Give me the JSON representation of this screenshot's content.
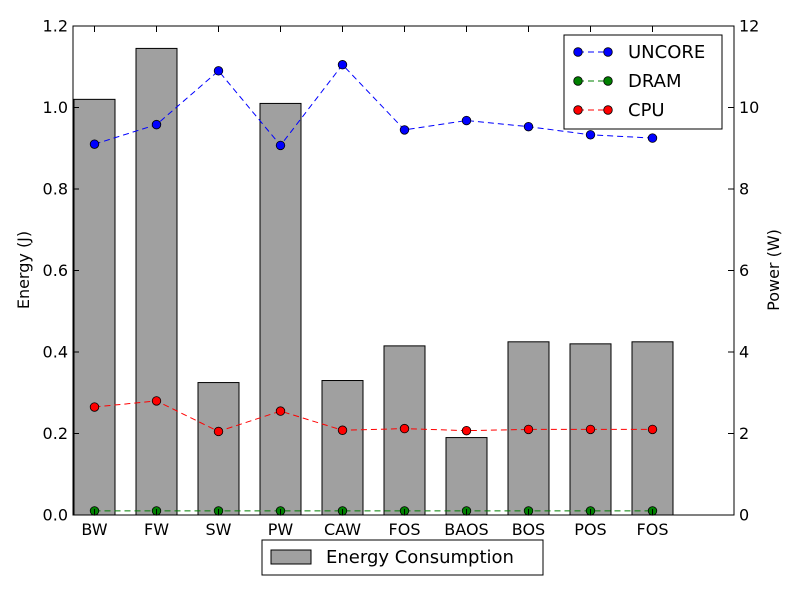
{
  "chart_data": {
    "type": "bar",
    "categories": [
      "BW",
      "FW",
      "SW",
      "PW",
      "CAW",
      "FOS",
      "BAOS",
      "BOS",
      "POS",
      "FOS"
    ],
    "bar_series": {
      "name": "Energy Consumption",
      "values": [
        1.02,
        1.145,
        0.325,
        1.01,
        0.33,
        0.415,
        0.19,
        0.425,
        0.42,
        0.425
      ],
      "color": "#a0a0a0"
    },
    "line_series": [
      {
        "name": "UNCORE",
        "axis": "right",
        "color": "#0000ff",
        "values": [
          9.1,
          9.58,
          10.9,
          9.07,
          11.05,
          9.45,
          9.68,
          9.53,
          9.33,
          9.25
        ]
      },
      {
        "name": "DRAM",
        "axis": "right",
        "color": "#008000",
        "values": [
          0.1,
          0.1,
          0.1,
          0.1,
          0.1,
          0.1,
          0.1,
          0.1,
          0.1,
          0.1
        ]
      },
      {
        "name": "CPU",
        "axis": "right",
        "color": "#ff0000",
        "values": [
          2.65,
          2.8,
          2.05,
          2.55,
          2.08,
          2.12,
          2.07,
          2.1,
          2.1,
          2.1
        ]
      }
    ],
    "ylabel": "Energy (J)",
    "ylim": [
      0,
      1.2
    ],
    "yticks": [
      "0.0",
      "0.2",
      "0.4",
      "0.6",
      "0.8",
      "1.0",
      "1.2"
    ],
    "y2label": "Power (W)",
    "y2lim": [
      0,
      12
    ],
    "y2ticks": [
      "0",
      "2",
      "4",
      "6",
      "8",
      "10",
      "12"
    ],
    "grid": false,
    "legend_lines_placement": "top-right",
    "legend_bars_placement": "bottom-center"
  }
}
